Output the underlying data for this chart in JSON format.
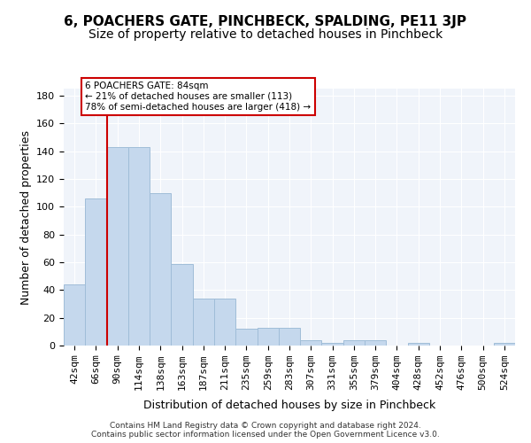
{
  "title": "6, POACHERS GATE, PINCHBECK, SPALDING, PE11 3JP",
  "subtitle": "Size of property relative to detached houses in Pinchbeck",
  "xlabel": "Distribution of detached houses by size in Pinchbeck",
  "ylabel": "Number of detached properties",
  "categories": [
    "42sqm",
    "66sqm",
    "90sqm",
    "114sqm",
    "138sqm",
    "163sqm",
    "187sqm",
    "211sqm",
    "235sqm",
    "259sqm",
    "283sqm",
    "307sqm",
    "331sqm",
    "355sqm",
    "379sqm",
    "404sqm",
    "428sqm",
    "452sqm",
    "476sqm",
    "500sqm",
    "524sqm"
  ],
  "values": [
    44,
    106,
    143,
    143,
    110,
    59,
    34,
    34,
    12,
    13,
    13,
    4,
    2,
    4,
    4,
    0,
    2,
    0,
    0,
    0,
    2
  ],
  "bar_color": "#c5d8ed",
  "bar_edge_color": "#a0bdd8",
  "property_line_x": 2,
  "property_line_color": "#cc0000",
  "annotation_box_color": "#cc0000",
  "annotation_text": "6 POACHERS GATE: 84sqm\n← 21% of detached houses are smaller (113)\n78% of semi-detached houses are larger (418) →",
  "ylim": [
    0,
    185
  ],
  "yticks": [
    0,
    20,
    40,
    60,
    80,
    100,
    120,
    140,
    160,
    180
  ],
  "background_color": "#f0f4fa",
  "grid_color": "#ffffff",
  "footer_text": "Contains HM Land Registry data © Crown copyright and database right 2024.\nContains public sector information licensed under the Open Government Licence v3.0.",
  "title_fontsize": 11,
  "subtitle_fontsize": 10,
  "xlabel_fontsize": 9,
  "ylabel_fontsize": 9,
  "tick_fontsize": 8
}
